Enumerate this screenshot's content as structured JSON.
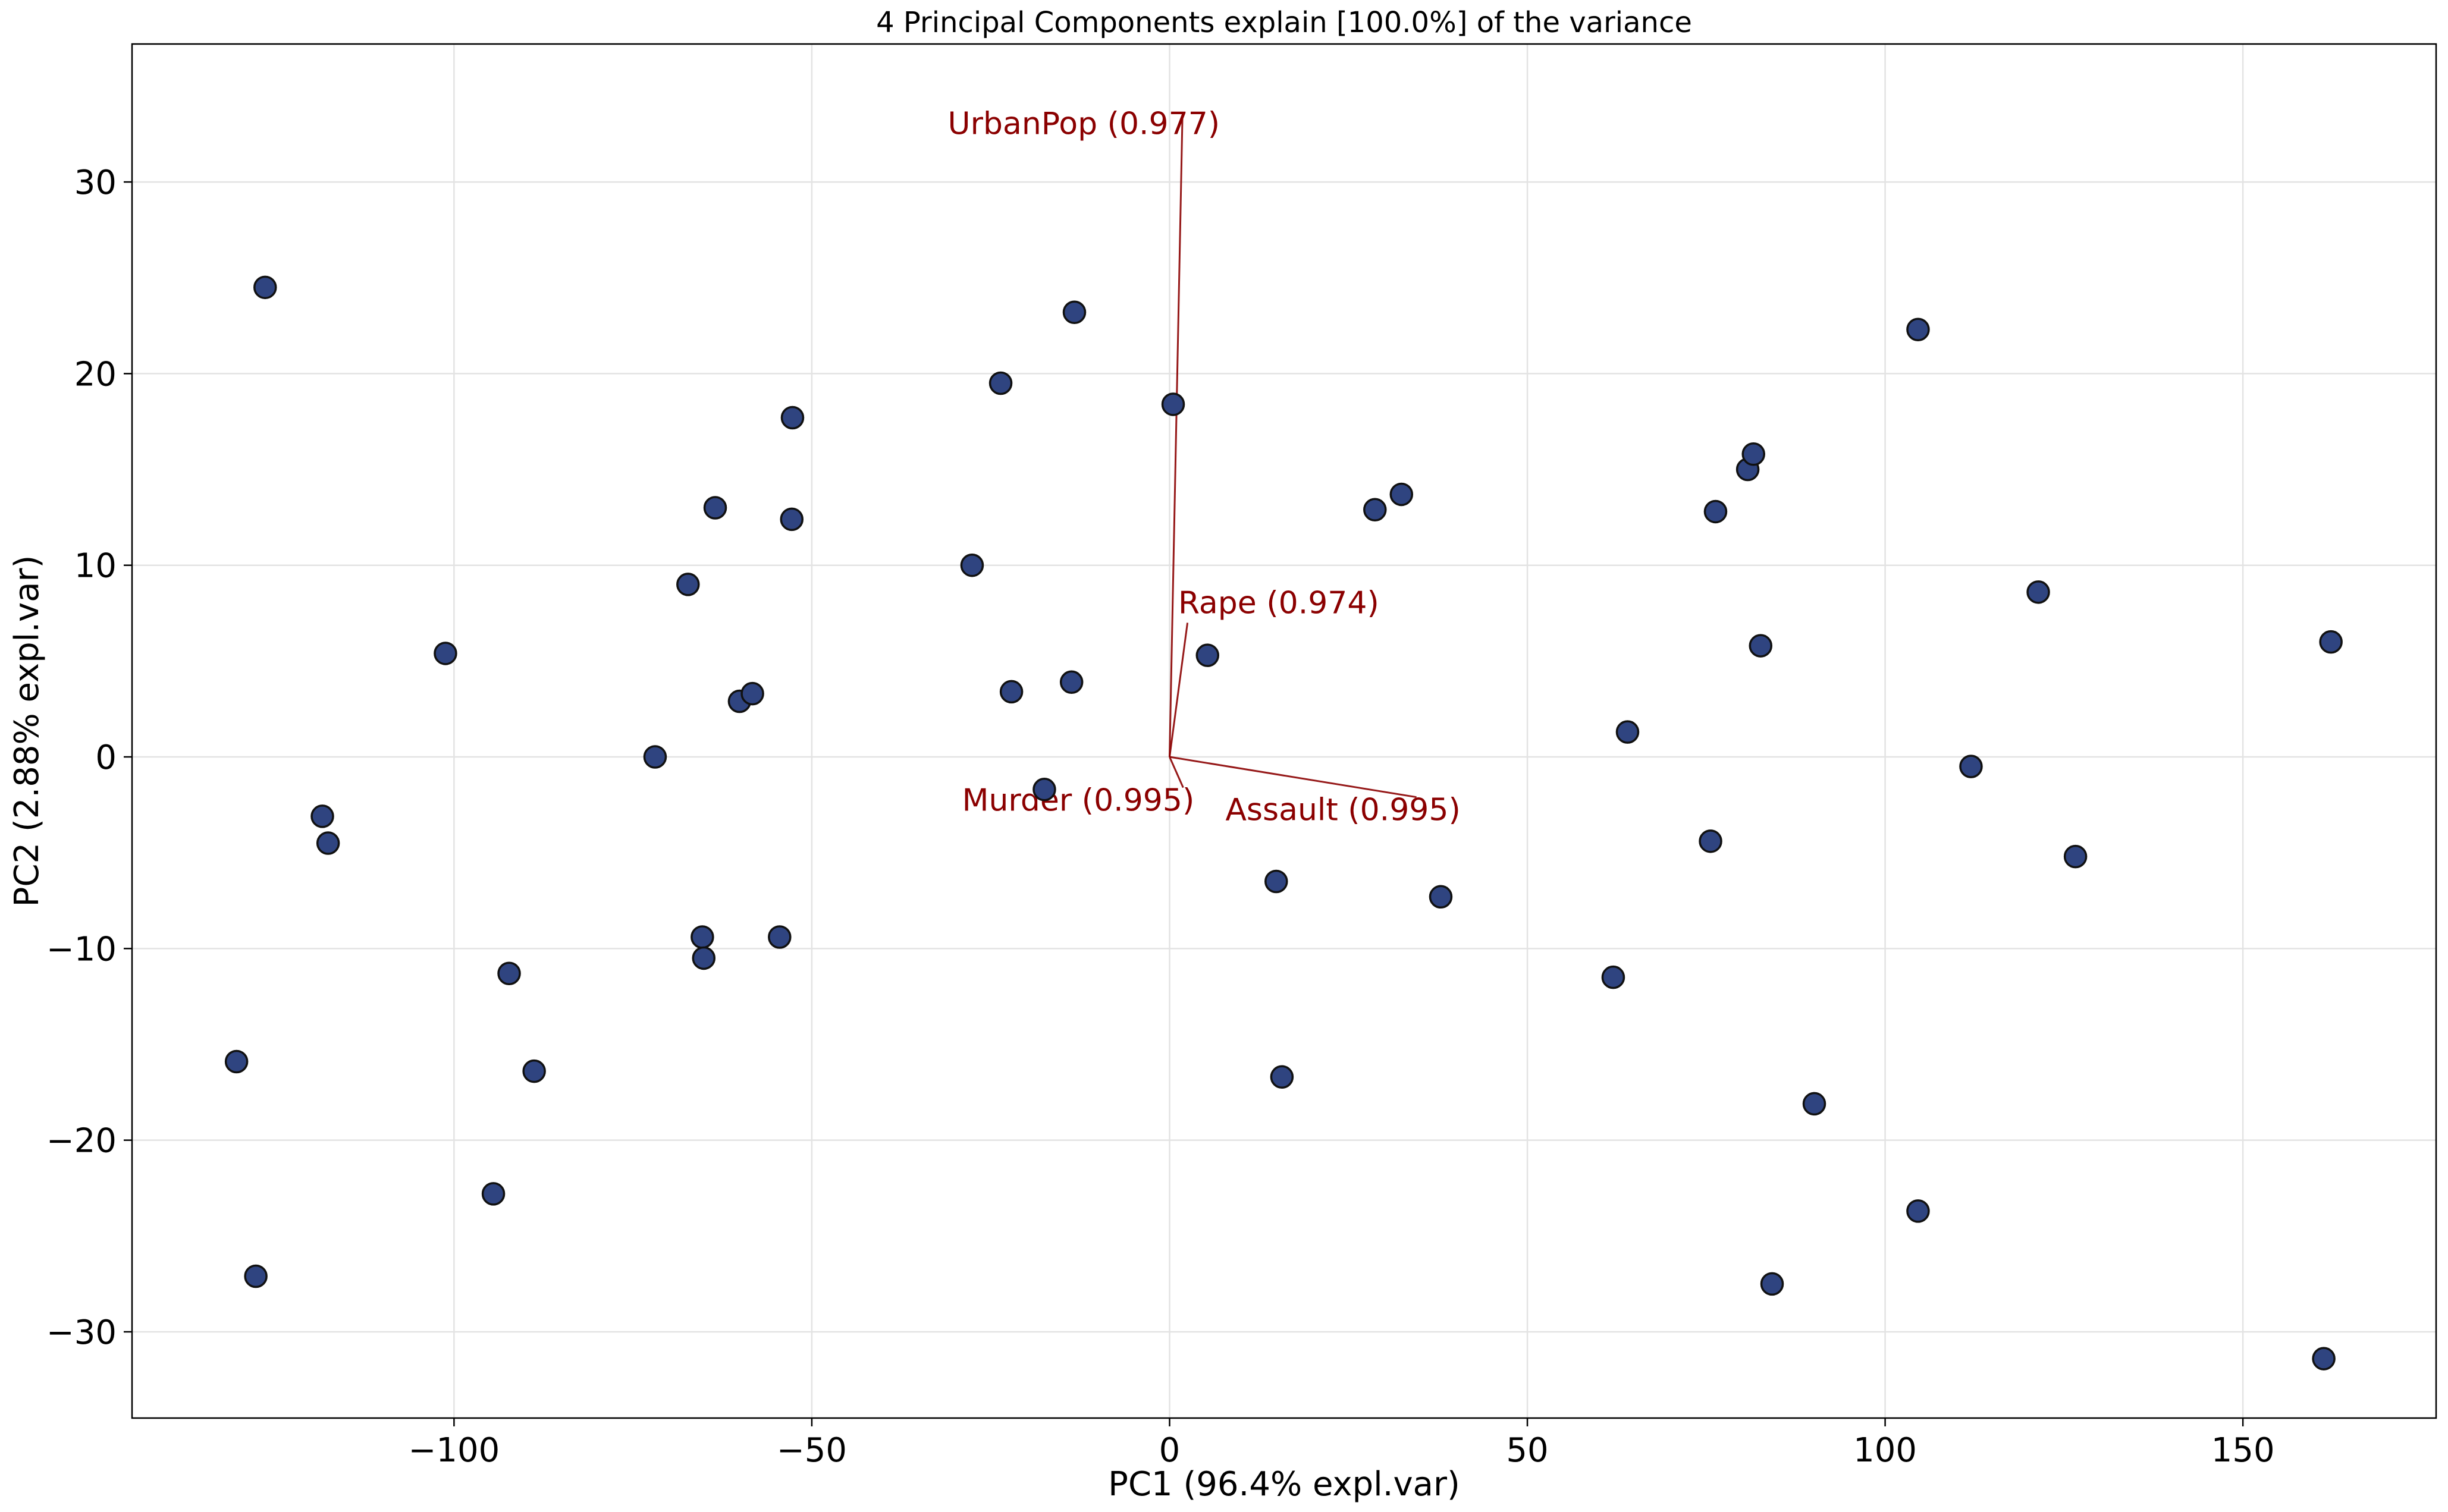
{
  "chart_data": {
    "type": "scatter",
    "title": "4 Principal Components explain [100.0%] of the variance",
    "xlabel": "PC1 (96.4% expl.var)",
    "ylabel": "PC2 (2.88% expl.var)",
    "xlim": [
      -145,
      177
    ],
    "ylim": [
      -34.5,
      37.2
    ],
    "xticks": [
      -100,
      -50,
      0,
      50,
      100,
      150
    ],
    "yticks": [
      -30,
      -20,
      -10,
      0,
      10,
      20,
      30
    ],
    "xtick_labels": [
      "−100",
      "−50",
      "0",
      "50",
      "100",
      "150"
    ],
    "ytick_labels": [
      "−30",
      "−20",
      "−10",
      "0",
      "10",
      "20",
      "30"
    ],
    "grid": true,
    "colors": {
      "marker_fill": "#2f4480",
      "marker_edge": "#111111",
      "loading": "#8b0000"
    },
    "points": [
      {
        "x": -126.4,
        "y": 24.5
      },
      {
        "x": -101.2,
        "y": 5.4
      },
      {
        "x": -118.4,
        "y": -3.1
      },
      {
        "x": -117.6,
        "y": -4.5
      },
      {
        "x": -130.4,
        "y": -15.9
      },
      {
        "x": -127.7,
        "y": -27.1
      },
      {
        "x": -94.5,
        "y": -22.8
      },
      {
        "x": -92.3,
        "y": -11.3
      },
      {
        "x": -88.8,
        "y": -16.4
      },
      {
        "x": -71.9,
        "y": 0.0
      },
      {
        "x": -67.3,
        "y": 9.0
      },
      {
        "x": -63.5,
        "y": 13.0
      },
      {
        "x": -60.1,
        "y": 2.9
      },
      {
        "x": -58.3,
        "y": 3.3
      },
      {
        "x": -65.3,
        "y": -9.4
      },
      {
        "x": -65.1,
        "y": -10.5
      },
      {
        "x": -54.5,
        "y": -9.4
      },
      {
        "x": -52.7,
        "y": 17.7
      },
      {
        "x": -52.8,
        "y": 12.4
      },
      {
        "x": -27.6,
        "y": 10.0
      },
      {
        "x": -23.6,
        "y": 19.5
      },
      {
        "x": -22.1,
        "y": 3.4
      },
      {
        "x": -13.3,
        "y": 23.2
      },
      {
        "x": -13.7,
        "y": 3.9
      },
      {
        "x": -17.5,
        "y": -1.7
      },
      {
        "x": 0.5,
        "y": 18.4
      },
      {
        "x": 5.3,
        "y": 5.3
      },
      {
        "x": 14.9,
        "y": -6.5
      },
      {
        "x": 15.7,
        "y": -16.7
      },
      {
        "x": 28.7,
        "y": 12.9
      },
      {
        "x": 32.4,
        "y": 13.7
      },
      {
        "x": 37.9,
        "y": -7.3
      },
      {
        "x": 62.0,
        "y": -11.5
      },
      {
        "x": 64.0,
        "y": 1.3
      },
      {
        "x": 75.6,
        "y": -4.4
      },
      {
        "x": 76.3,
        "y": 12.8
      },
      {
        "x": 80.8,
        "y": 15.0
      },
      {
        "x": 81.6,
        "y": 15.8
      },
      {
        "x": 82.6,
        "y": 5.8
      },
      {
        "x": 84.2,
        "y": -27.5
      },
      {
        "x": 90.1,
        "y": -18.1
      },
      {
        "x": 104.6,
        "y": 22.3
      },
      {
        "x": 104.6,
        "y": -23.7
      },
      {
        "x": 112.0,
        "y": -0.5
      },
      {
        "x": 121.4,
        "y": 8.6
      },
      {
        "x": 126.6,
        "y": -5.2
      },
      {
        "x": 161.3,
        "y": -31.4
      },
      {
        "x": 162.3,
        "y": 6.0
      }
    ],
    "loadings": [
      {
        "label": "UrbanPop (0.977)",
        "x": 1.8,
        "y": 33.5,
        "label_x": -31,
        "label_y": 32.5
      },
      {
        "label": "Rape (0.974)",
        "x": 2.5,
        "y": 7.0,
        "label_x": 1.2,
        "label_y": 7.5
      },
      {
        "label": "Murder (0.995)",
        "x": 1.9,
        "y": -1.6,
        "label_x": -29.0,
        "label_y": -2.8
      },
      {
        "label": "Assault (0.995)",
        "x": 34.5,
        "y": -2.1,
        "label_x": 7.8,
        "label_y": -3.3
      }
    ]
  }
}
